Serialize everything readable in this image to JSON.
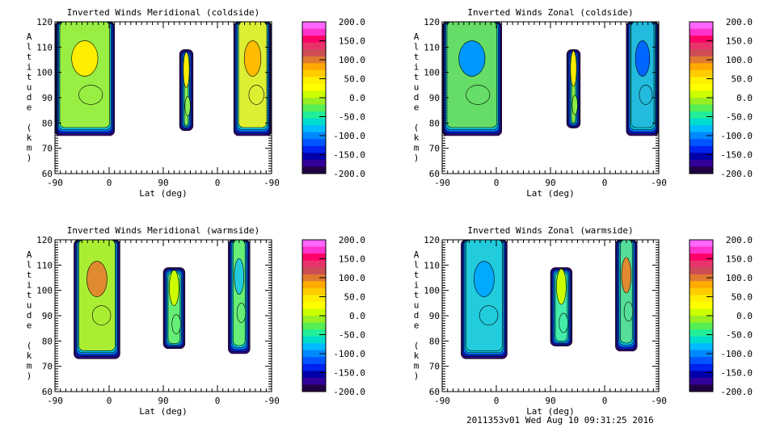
{
  "chart_data": [
    {
      "type": "heatmap",
      "title": "Inverted Winds Meridional (coldside)",
      "xlabel": "Lat (deg)",
      "ylabel": "Altitude (km)",
      "x_tick_labels": [
        "-90",
        "0",
        "90",
        "0",
        "-90"
      ],
      "y_tick_labels": [
        "60",
        "70",
        "80",
        "90",
        "100",
        "110",
        "120"
      ],
      "ylim": [
        60,
        120
      ],
      "colorbar": {
        "range": [
          -200,
          200
        ],
        "tick_labels": [
          "200.0",
          "150.0",
          "100.0",
          "50.0",
          "0.0",
          "-50.0",
          "-100.0",
          "-150.0",
          "-200.0"
        ]
      }
    },
    {
      "type": "heatmap",
      "title": "Inverted Winds Zonal (coldside)",
      "xlabel": "Lat (deg)",
      "ylabel": "Altitude (km)",
      "x_tick_labels": [
        "-90",
        "0",
        "90",
        "0",
        "-90"
      ],
      "y_tick_labels": [
        "60",
        "70",
        "80",
        "90",
        "100",
        "110",
        "120"
      ],
      "ylim": [
        60,
        120
      ],
      "colorbar": {
        "range": [
          -200,
          200
        ],
        "tick_labels": [
          "200.0",
          "150.0",
          "100.0",
          "50.0",
          "0.0",
          "-50.0",
          "-100.0",
          "-150.0",
          "-200.0"
        ]
      }
    },
    {
      "type": "heatmap",
      "title": "Inverted Winds Meridional (warmside)",
      "xlabel": "Lat (deg)",
      "ylabel": "Altitude (km)",
      "x_tick_labels": [
        "-90",
        "0",
        "90",
        "0",
        "-90"
      ],
      "y_tick_labels": [
        "60",
        "70",
        "80",
        "90",
        "100",
        "110",
        "120"
      ],
      "ylim": [
        60,
        120
      ],
      "colorbar": {
        "range": [
          -200,
          200
        ],
        "tick_labels": [
          "200.0",
          "150.0",
          "100.0",
          "50.0",
          "0.0",
          "-50.0",
          "-100.0",
          "-150.0",
          "-200.0"
        ]
      }
    },
    {
      "type": "heatmap",
      "title": "Inverted Winds Zonal (warmside)",
      "xlabel": "Lat (deg)",
      "ylabel": "Altitude (km)",
      "x_tick_labels": [
        "-90",
        "0",
        "90",
        "0",
        "-90"
      ],
      "y_tick_labels": [
        "60",
        "70",
        "80",
        "90",
        "100",
        "110",
        "120"
      ],
      "ylim": [
        60,
        120
      ],
      "colorbar": {
        "range": [
          -200,
          200
        ],
        "tick_labels": [
          "200.0",
          "150.0",
          "100.0",
          "50.0",
          "0.0",
          "-50.0",
          "-100.0",
          "-150.0",
          "-200.0"
        ]
      }
    }
  ],
  "colormap": [
    "#ff66ff",
    "#ff33cc",
    "#ff0066",
    "#e8336a",
    "#cc4d55",
    "#e07a30",
    "#ffaa00",
    "#ffcc00",
    "#ffee00",
    "#ffff00",
    "#ccff00",
    "#99ee22",
    "#55ee55",
    "#22ee99",
    "#00ddcc",
    "#00bbff",
    "#0088ff",
    "#0055ff",
    "#0022ee",
    "#0000aa",
    "#330099",
    "#220044"
  ],
  "footer": "2011353v01 Wed Aug 10 09:31:25 2016"
}
